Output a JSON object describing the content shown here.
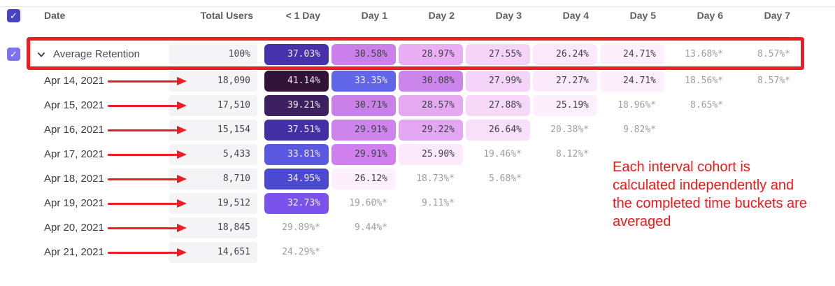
{
  "table": {
    "select_all_checked": true,
    "columns": [
      "Date",
      "Total Users",
      "< 1 Day",
      "Day 1",
      "Day 2",
      "Day 3",
      "Day 4",
      "Day 5",
      "Day 6",
      "Day 7"
    ],
    "average_row": {
      "label": "Average Retention",
      "checked": true,
      "total": "100%",
      "cells": [
        {
          "v": "37.03%",
          "bg": "#4633ab",
          "fg": "#f2ebf7"
        },
        {
          "v": "30.58%",
          "bg": "#ca7fea",
          "fg": "#3f3f49"
        },
        {
          "v": "28.97%",
          "bg": "#e9aef4",
          "fg": "#3f3f49"
        },
        {
          "v": "27.55%",
          "bg": "#f6d3f9",
          "fg": "#3f3f49"
        },
        {
          "v": "26.24%",
          "bg": "#fbe9fb",
          "fg": "#3f3f49"
        },
        {
          "v": "24.71%",
          "bg": "#fdf0fc",
          "fg": "#3f3f49"
        },
        {
          "v": "13.68%*"
        },
        {
          "v": "8.57%*"
        }
      ]
    },
    "rows": [
      {
        "date": "Apr 14, 2021",
        "total": "18,090",
        "cells": [
          {
            "v": "41.14%",
            "bg": "#321438",
            "fg": "#e9e3ee"
          },
          {
            "v": "33.35%",
            "bg": "#6165e8",
            "fg": "#f2ebf7"
          },
          {
            "v": "30.08%",
            "bg": "#cc85ea",
            "fg": "#3f3f49"
          },
          {
            "v": "27.99%",
            "bg": "#f5d4f9",
            "fg": "#3f3f49"
          },
          {
            "v": "27.27%",
            "bg": "#fbeafc",
            "fg": "#3f3f49"
          },
          {
            "v": "24.71%",
            "bg": "#fdf0fc",
            "fg": "#3f3f49"
          },
          {
            "v": "18.56%*"
          },
          {
            "v": "8.57%*"
          }
        ]
      },
      {
        "date": "Apr 15, 2021",
        "total": "17,510",
        "cells": [
          {
            "v": "39.21%",
            "bg": "#3c2060",
            "fg": "#f2ebf7"
          },
          {
            "v": "30.71%",
            "bg": "#c980e9",
            "fg": "#3f3f49"
          },
          {
            "v": "28.57%",
            "bg": "#e5a9f2",
            "fg": "#3f3f49"
          },
          {
            "v": "27.88%",
            "bg": "#f6d9f9",
            "fg": "#3f3f49"
          },
          {
            "v": "25.19%",
            "bg": "#fdeffb",
            "fg": "#3f3f49"
          },
          {
            "v": "18.96%*"
          },
          {
            "v": "8.65%*"
          }
        ]
      },
      {
        "date": "Apr 16, 2021",
        "total": "15,154",
        "cells": [
          {
            "v": "37.51%",
            "bg": "#4330a6",
            "fg": "#f2ebf7"
          },
          {
            "v": "29.91%",
            "bg": "#cd84ec",
            "fg": "#3f3f49"
          },
          {
            "v": "29.22%",
            "bg": "#e3a6f1",
            "fg": "#3f3f49"
          },
          {
            "v": "26.64%",
            "bg": "#f8dffa",
            "fg": "#3f3f49"
          },
          {
            "v": "20.38%*"
          },
          {
            "v": "9.82%*"
          }
        ]
      },
      {
        "date": "Apr 17, 2021",
        "total": "5,433",
        "cells": [
          {
            "v": "33.81%",
            "bg": "#5a58e0",
            "fg": "#f2ebf7"
          },
          {
            "v": "29.91%",
            "bg": "#cf80ee",
            "fg": "#3f3f49"
          },
          {
            "v": "25.90%",
            "bg": "#fce8fb",
            "fg": "#3f3f49"
          },
          {
            "v": "19.46%*"
          },
          {
            "v": "8.12%*"
          }
        ]
      },
      {
        "date": "Apr 18, 2021",
        "total": "8,710",
        "cells": [
          {
            "v": "34.95%",
            "bg": "#4b49d0",
            "fg": "#f2ebf7"
          },
          {
            "v": "26.12%",
            "bg": "#fdeffb",
            "fg": "#3f3f49"
          },
          {
            "v": "18.73%*"
          },
          {
            "v": "5.68%*"
          }
        ]
      },
      {
        "date": "Apr 19, 2021",
        "total": "19,512",
        "cells": [
          {
            "v": "32.73%",
            "bg": "#7a52ec",
            "fg": "#f2ebf7"
          },
          {
            "v": "19.60%*"
          },
          {
            "v": "9.11%*"
          }
        ]
      },
      {
        "date": "Apr 20, 2021",
        "total": "18,845",
        "cells": [
          {
            "v": "29.89%*"
          },
          {
            "v": "9.44%*"
          }
        ]
      },
      {
        "date": "Apr 21, 2021",
        "total": "14,651",
        "cells": [
          {
            "v": "24.29%*"
          }
        ]
      }
    ]
  },
  "annotation": {
    "lines": [
      "Each interval cohort is",
      "calculated independently and",
      "the completed time buckets are",
      "averaged"
    ]
  },
  "colors": {
    "select_all_checkbox": "#4a44c4",
    "row_checkbox": "#7d73ed",
    "highlight_red": "#ec1d24",
    "annotation_red": "#f51616",
    "muted_value": "#9c9da5",
    "check_glyph": "✓"
  }
}
